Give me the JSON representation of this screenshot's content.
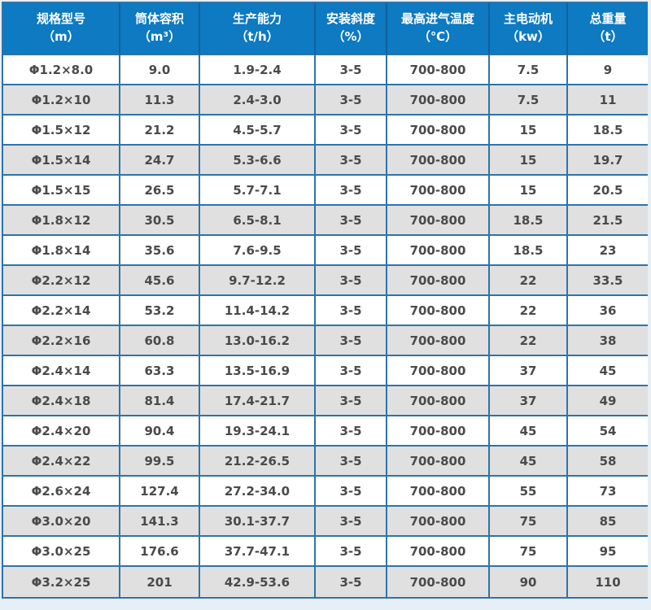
{
  "colors": {
    "header_bg": "#0d7ac1",
    "header_text": "#ffffff",
    "border_blue": "#2e74a8",
    "header_divider": "#11619f",
    "row_alt_bg": "#e0e0e0",
    "row_bg": "#ffffff",
    "cell_text": "#4a4a4a",
    "page_bg": "#e6eef6"
  },
  "table": {
    "columns": [
      {
        "title": "规格型号",
        "unit": "（m）"
      },
      {
        "title": "筒体容积",
        "unit": "（m³）"
      },
      {
        "title": "生产能力",
        "unit": "（t/h）"
      },
      {
        "title": "安装斜度",
        "unit": "（%）"
      },
      {
        "title": "最高进气温度",
        "unit": "（℃）"
      },
      {
        "title": "主电动机",
        "unit": "（kw）"
      },
      {
        "title": "总重量",
        "unit": "（t）"
      }
    ],
    "rows": [
      [
        "Φ1.2×8.0",
        "9.0",
        "1.9-2.4",
        "3-5",
        "700-800",
        "7.5",
        "9"
      ],
      [
        "Φ1.2×10",
        "11.3",
        "2.4-3.0",
        "3-5",
        "700-800",
        "7.5",
        "11"
      ],
      [
        "Φ1.5×12",
        "21.2",
        "4.5-5.7",
        "3-5",
        "700-800",
        "15",
        "18.5"
      ],
      [
        "Φ1.5×14",
        "24.7",
        "5.3-6.6",
        "3-5",
        "700-800",
        "15",
        "19.7"
      ],
      [
        "Φ1.5×15",
        "26.5",
        "5.7-7.1",
        "3-5",
        "700-800",
        "15",
        "20.5"
      ],
      [
        "Φ1.8×12",
        "30.5",
        "6.5-8.1",
        "3-5",
        "700-800",
        "18.5",
        "21.5"
      ],
      [
        "Φ1.8×14",
        "35.6",
        "7.6-9.5",
        "3-5",
        "700-800",
        "18.5",
        "23"
      ],
      [
        "Φ2.2×12",
        "45.6",
        "9.7-12.2",
        "3-5",
        "700-800",
        "22",
        "33.5"
      ],
      [
        "Φ2.2×14",
        "53.2",
        "11.4-14.2",
        "3-5",
        "700-800",
        "22",
        "36"
      ],
      [
        "Φ2.2×16",
        "60.8",
        "13.0-16.2",
        "3-5",
        "700-800",
        "22",
        "38"
      ],
      [
        "Φ2.4×14",
        "63.3",
        "13.5-16.9",
        "3-5",
        "700-800",
        "37",
        "45"
      ],
      [
        "Φ2.4×18",
        "81.4",
        "17.4-21.7",
        "3-5",
        "700-800",
        "37",
        "49"
      ],
      [
        "Φ2.4×20",
        "90.4",
        "19.3-24.1",
        "3-5",
        "700-800",
        "45",
        "54"
      ],
      [
        "Φ2.4×22",
        "99.5",
        "21.2-26.5",
        "3-5",
        "700-800",
        "45",
        "58"
      ],
      [
        "Φ2.6×24",
        "127.4",
        "27.2-34.0",
        "3-5",
        "700-800",
        "55",
        "73"
      ],
      [
        "Φ3.0×20",
        "141.3",
        "30.1-37.7",
        "3-5",
        "700-800",
        "75",
        "85"
      ],
      [
        "Φ3.0×25",
        "176.6",
        "37.7-47.1",
        "3-5",
        "700-800",
        "75",
        "95"
      ],
      [
        "Φ3.2×25",
        "201",
        "42.9-53.6",
        "3-5",
        "700-800",
        "90",
        "110"
      ]
    ]
  }
}
